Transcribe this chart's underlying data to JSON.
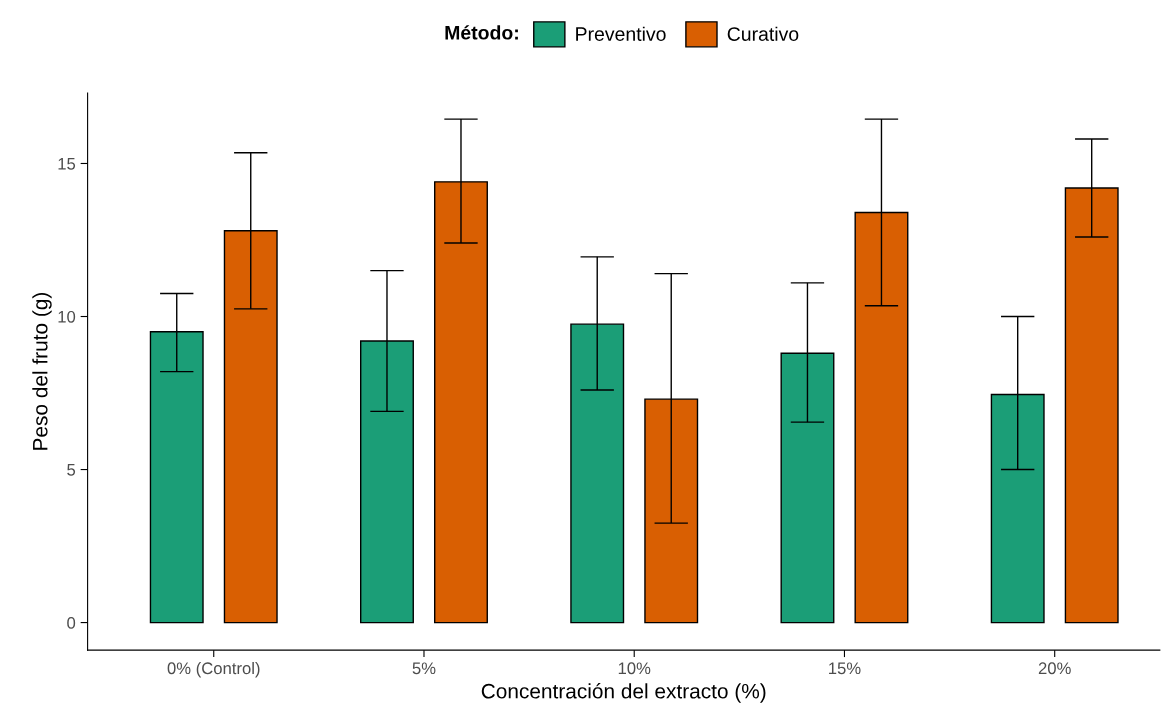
{
  "chart_data": {
    "type": "bar",
    "xlabel": "Concentración del extracto (%)",
    "ylabel": "Peso del fruto (g)",
    "legend_title": "Método:",
    "legend": "top",
    "grid": false,
    "categories": [
      "0% (Control)",
      "5%",
      "10%",
      "15%",
      "20%"
    ],
    "ylim": [
      -0.9,
      17.3
    ],
    "yticks": [
      0,
      5,
      10,
      15
    ],
    "series": [
      {
        "name": "Preventivo",
        "color": "#1b9e77",
        "values": [
          9.5,
          9.2,
          9.75,
          8.8,
          7.45
        ],
        "errors": [
          [
            8.2,
            10.75
          ],
          [
            6.9,
            11.5
          ],
          [
            7.6,
            11.95
          ],
          [
            6.55,
            11.1
          ],
          [
            5.0,
            10.0
          ]
        ]
      },
      {
        "name": "Curativo",
        "color": "#d95f02",
        "values": [
          12.8,
          14.4,
          7.3,
          13.4,
          14.2
        ],
        "errors": [
          [
            10.25,
            15.35
          ],
          [
            12.4,
            16.45
          ],
          [
            3.25,
            11.4
          ],
          [
            10.35,
            16.45
          ],
          [
            12.6,
            15.8
          ]
        ]
      }
    ]
  }
}
